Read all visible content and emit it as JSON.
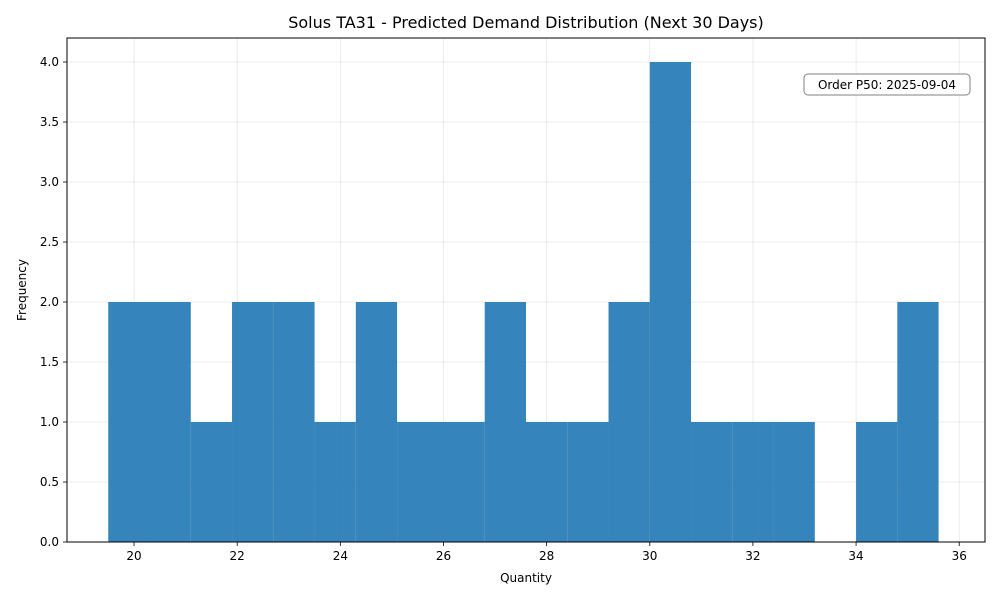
{
  "chart_data": {
    "type": "bar",
    "title": "Solus TA31 - Predicted Demand Distribution (Next 30 Days)",
    "xlabel": "Quantity",
    "ylabel": "Frequency",
    "xlim": [
      18.7,
      36.5
    ],
    "ylim": [
      0,
      4.2
    ],
    "x_ticks": [
      20,
      22,
      24,
      26,
      28,
      30,
      32,
      34,
      36
    ],
    "y_ticks": [
      "0.0",
      "0.5",
      "1.0",
      "1.5",
      "2.0",
      "2.5",
      "3.0",
      "3.5",
      "4.0"
    ],
    "grid": true,
    "bar_color": "#1f77b4",
    "bar_opacity": 0.9,
    "bins": [
      {
        "x0": 19.5,
        "x1": 20.3,
        "value": 2
      },
      {
        "x0": 20.3,
        "x1": 21.1,
        "value": 2
      },
      {
        "x0": 21.1,
        "x1": 21.9,
        "value": 1
      },
      {
        "x0": 21.9,
        "x1": 22.7,
        "value": 2
      },
      {
        "x0": 22.7,
        "x1": 23.5,
        "value": 2
      },
      {
        "x0": 23.5,
        "x1": 24.3,
        "value": 1
      },
      {
        "x0": 24.3,
        "x1": 25.1,
        "value": 2
      },
      {
        "x0": 25.1,
        "x1": 26.0,
        "value": 1
      },
      {
        "x0": 26.0,
        "x1": 26.8,
        "value": 1
      },
      {
        "x0": 26.8,
        "x1": 27.6,
        "value": 2
      },
      {
        "x0": 27.6,
        "x1": 28.4,
        "value": 1
      },
      {
        "x0": 28.4,
        "x1": 29.2,
        "value": 1
      },
      {
        "x0": 29.2,
        "x1": 30.0,
        "value": 2
      },
      {
        "x0": 30.0,
        "x1": 30.8,
        "value": 4
      },
      {
        "x0": 30.8,
        "x1": 31.6,
        "value": 1
      },
      {
        "x0": 31.6,
        "x1": 32.4,
        "value": 1
      },
      {
        "x0": 32.4,
        "x1": 33.2,
        "value": 1
      },
      {
        "x0": 33.2,
        "x1": 34.0,
        "value": 0
      },
      {
        "x0": 34.0,
        "x1": 34.8,
        "value": 1
      },
      {
        "x0": 34.8,
        "x1": 35.6,
        "value": 2
      }
    ],
    "annotation": {
      "text": "Order P50: 2025-09-04",
      "placement": "top-right"
    }
  }
}
